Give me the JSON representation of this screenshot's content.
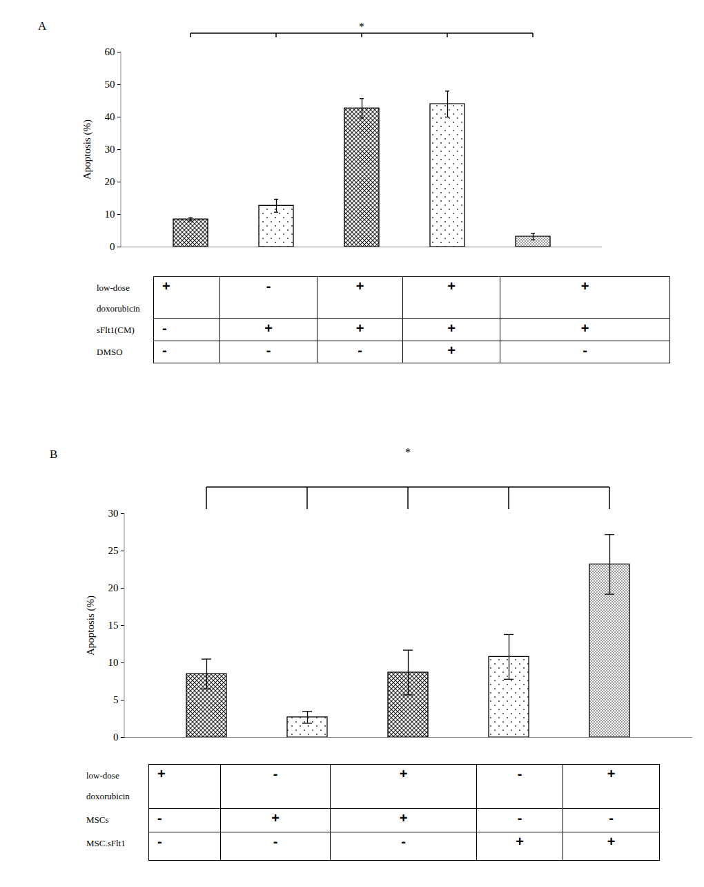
{
  "chart_data": [
    {
      "type": "bar",
      "title": "A",
      "y_label": "Apoptosis (%)",
      "categories": [
        null,
        null,
        null,
        null,
        null
      ],
      "values": [
        8.5,
        12.7,
        42.7,
        44.0,
        3.2
      ],
      "errors": [
        0.5,
        2.0,
        3.0,
        4.0,
        1.0
      ],
      "ylim": [
        0,
        60
      ],
      "yticks": [
        0,
        10,
        20,
        30,
        40,
        50,
        60
      ],
      "annotations": [
        {
          "text": "*"
        }
      ],
      "table": {
        "rows": [
          {
            "label": "low-dose doxorubicin",
            "values": [
              "+",
              "-",
              "+",
              "+",
              "+"
            ]
          },
          {
            "label": "sFlt1(CM)",
            "values": [
              "-",
              "+",
              "+",
              "+",
              "+"
            ]
          },
          {
            "label": "DMSO",
            "values": [
              "-",
              "-",
              "-",
              "+",
              "-"
            ]
          }
        ]
      }
    },
    {
      "type": "bar",
      "title": "B",
      "y_label": "Apoptosis (%)",
      "categories": [
        null,
        null,
        null,
        null,
        null
      ],
      "values": [
        8.5,
        2.7,
        8.7,
        10.8,
        23.2
      ],
      "errors": [
        2.0,
        0.8,
        3.0,
        3.0,
        4.0
      ],
      "ylim": [
        0,
        30
      ],
      "yticks": [
        0,
        5,
        10,
        15,
        20,
        25,
        30
      ],
      "annotations": [
        {
          "text": "*"
        }
      ],
      "table": {
        "rows": [
          {
            "label": "low-dose doxorubicin",
            "values": [
              "+",
              "-",
              "+",
              "-",
              "+"
            ]
          },
          {
            "label": "MSCs",
            "values": [
              "-",
              "+",
              "+",
              "-",
              "-"
            ]
          },
          {
            "label": "MSC.sFlt1",
            "values": [
              "-",
              "-",
              "-",
              "+",
              "+"
            ]
          }
        ]
      }
    }
  ]
}
